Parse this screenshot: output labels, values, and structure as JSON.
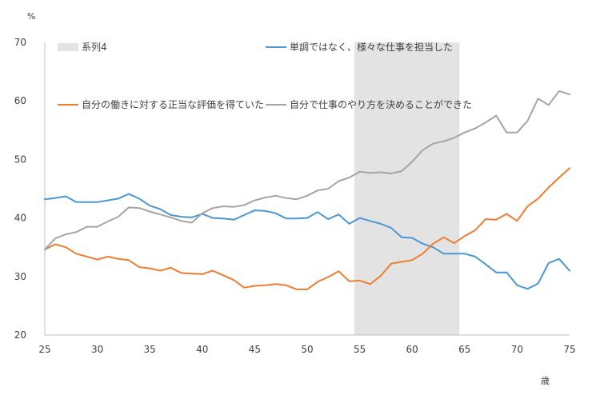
{
  "chart_data": {
    "type": "line",
    "ylabel": "%",
    "xlabel": "歳",
    "xlim": [
      25,
      75
    ],
    "ylim": [
      20,
      70
    ],
    "x_ticks": [
      25,
      30,
      35,
      40,
      45,
      50,
      55,
      60,
      65,
      70,
      75
    ],
    "y_ticks": [
      20,
      30,
      40,
      50,
      60,
      70
    ],
    "grid": false,
    "shaded_band": {
      "name": "系列4",
      "from": 54.5,
      "to": 64.5,
      "color": "#e4e3e3"
    },
    "x": [
      25,
      26,
      27,
      28,
      29,
      30,
      31,
      32,
      33,
      34,
      35,
      36,
      37,
      38,
      39,
      40,
      41,
      42,
      43,
      44,
      45,
      46,
      47,
      48,
      49,
      50,
      51,
      52,
      53,
      54,
      55,
      56,
      57,
      58,
      59,
      60,
      61,
      62,
      63,
      64,
      65,
      66,
      67,
      68,
      69,
      70,
      71,
      72,
      73,
      74,
      75
    ],
    "series": [
      {
        "name": "単調ではなく、様々な仕事を担当した",
        "color": "#4a97d4",
        "values": [
          43.2,
          43.4,
          43.7,
          42.7,
          42.7,
          42.7,
          43.0,
          43.3,
          44.1,
          43.3,
          42.1,
          41.5,
          40.5,
          40.2,
          40.1,
          40.7,
          40.0,
          39.9,
          39.7,
          40.5,
          41.3,
          41.2,
          40.8,
          39.9,
          39.9,
          40.0,
          41.0,
          39.8,
          40.6,
          39.0,
          40.0,
          39.5,
          39.0,
          38.3,
          36.7,
          36.6,
          35.6,
          35.0,
          33.9,
          33.9,
          33.9,
          33.4,
          32.1,
          30.7,
          30.7,
          28.5,
          27.9,
          28.8,
          32.3,
          33.0,
          31.0
        ]
      },
      {
        "name": "自分の働きに対する正当な評価を得ていた",
        "color": "#ed7d31",
        "values": [
          34.6,
          35.5,
          35.0,
          33.9,
          33.4,
          32.9,
          33.4,
          33.0,
          32.8,
          31.6,
          31.4,
          31.0,
          31.5,
          30.6,
          30.5,
          30.4,
          31.0,
          30.2,
          29.4,
          28.1,
          28.4,
          28.5,
          28.7,
          28.5,
          27.8,
          27.8,
          29.1,
          29.9,
          30.9,
          29.2,
          29.3,
          28.7,
          30.1,
          32.2,
          32.5,
          32.8,
          33.9,
          35.6,
          36.7,
          35.7,
          36.9,
          37.9,
          39.8,
          39.7,
          40.7,
          39.5,
          42.0,
          43.3,
          45.2,
          46.9,
          48.5
        ]
      },
      {
        "name": "自分で仕事のやり方を決めることができた",
        "color": "#a5a5a5",
        "values": [
          34.6,
          36.5,
          37.2,
          37.6,
          38.5,
          38.5,
          39.4,
          40.2,
          41.8,
          41.7,
          41.1,
          40.6,
          40.1,
          39.5,
          39.2,
          40.8,
          41.7,
          42.0,
          41.9,
          42.2,
          43.0,
          43.5,
          43.8,
          43.4,
          43.2,
          43.8,
          44.7,
          45.0,
          46.3,
          46.9,
          47.9,
          47.7,
          47.8,
          47.6,
          48.0,
          49.6,
          51.6,
          52.7,
          53.1,
          53.7,
          54.6,
          55.3,
          56.3,
          57.5,
          54.6,
          54.6,
          56.6,
          60.4,
          59.3,
          61.7,
          61.1
        ]
      }
    ]
  }
}
